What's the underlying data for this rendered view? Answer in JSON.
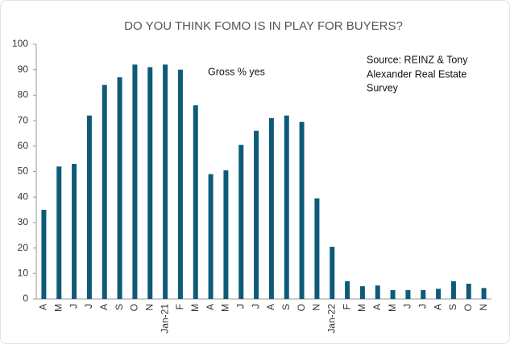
{
  "chart_data": {
    "type": "bar",
    "title": "DO YOU THINK FOMO IS IN PLAY FOR BUYERS?",
    "annotations": [
      "Gross % yes"
    ],
    "source": [
      "Source: REINZ & Tony",
      "Alexander  Real Estate",
      "Survey"
    ],
    "categories": [
      "A",
      "M",
      "J",
      "J",
      "A",
      "S",
      "O",
      "N",
      "Jan-21",
      "F",
      "M",
      "A",
      "M",
      "J",
      "J",
      "A",
      "S",
      "O",
      "N",
      "Jan-22",
      "F",
      "M",
      "A",
      "M",
      "J",
      "J",
      "A",
      "S",
      "O",
      "N"
    ],
    "values": [
      35,
      52,
      53,
      72,
      84,
      87,
      92,
      91,
      92,
      90,
      76,
      49,
      50.5,
      60.5,
      66,
      71,
      72,
      69.5,
      39.5,
      20.5,
      7,
      5,
      5.3,
      3.5,
      3.5,
      3.5,
      4,
      7,
      6,
      4.3
    ],
    "color": "#0d5b79",
    "ylim": [
      0,
      100
    ],
    "yticks": [
      0,
      10,
      20,
      30,
      40,
      50,
      60,
      70,
      80,
      90,
      100
    ],
    "grid": false
  }
}
